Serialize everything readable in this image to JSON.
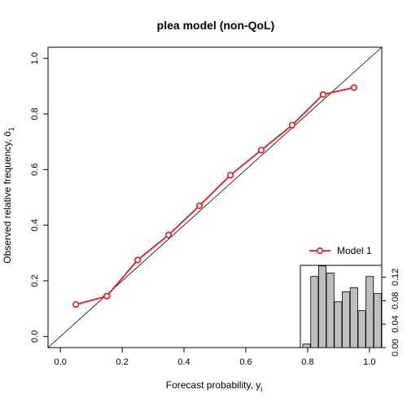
{
  "chart_data": {
    "type": "line",
    "title": "plea model (non-QoL)",
    "xlabel": "Forecast probability, y",
    "xlabel_subscript": "i",
    "ylabel": "Observed relative frequency, ō",
    "ylabel_subscript": "1",
    "xlim": [
      -0.04,
      1.04
    ],
    "ylim": [
      -0.04,
      1.04
    ],
    "x_ticks": [
      "0.0",
      "0.2",
      "0.4",
      "0.6",
      "0.8",
      "1.0"
    ],
    "y_ticks": [
      "0.0",
      "0.2",
      "0.4",
      "0.6",
      "0.8",
      "1.0"
    ],
    "diagonal_reference": true,
    "series": [
      {
        "name": "Model 1",
        "color": "#e41a1c",
        "x": [
          0.05,
          0.15,
          0.25,
          0.35,
          0.45,
          0.55,
          0.65,
          0.75,
          0.85,
          0.95
        ],
        "y": [
          0.115,
          0.145,
          0.275,
          0.365,
          0.47,
          0.58,
          0.67,
          0.76,
          0.87,
          0.895
        ]
      }
    ],
    "legend": {
      "placement": "bottom-right",
      "entries": [
        "Model 1"
      ]
    },
    "inset_histogram": {
      "placement": "bottom-right",
      "y_ticks": [
        "0.00",
        "0.04",
        "0.08",
        "0.12"
      ],
      "ylim": [
        0,
        0.14
      ],
      "bar_color": "#bebebe",
      "values": [
        0.006,
        0.121,
        0.139,
        0.127,
        0.078,
        0.095,
        0.102,
        0.063,
        0.121,
        0.092
      ]
    }
  }
}
